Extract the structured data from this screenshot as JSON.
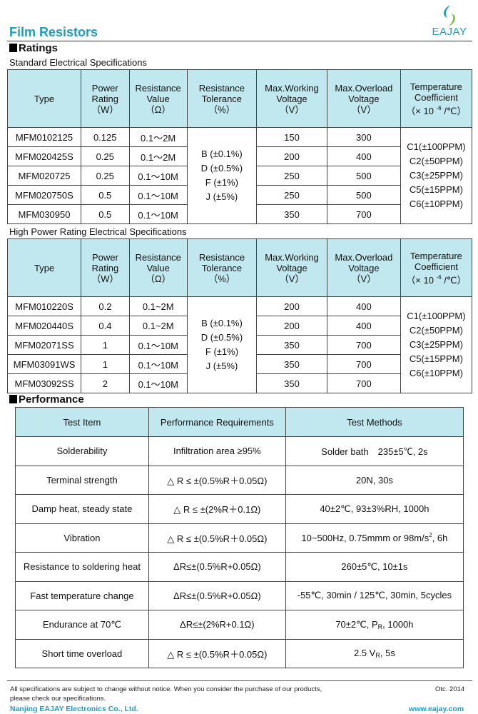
{
  "header": {
    "title": "Film Resistors",
    "logo_text": "EAJAY"
  },
  "colors": {
    "brand": "#1d9cc4",
    "table_header": "#c2e8ef",
    "logo_green": "#7cc043",
    "logo_blue": "#1d9cc4"
  },
  "ratings": {
    "heading": "Ratings",
    "columns": [
      [
        "Type"
      ],
      [
        "Power",
        "Rating",
        "（W）"
      ],
      [
        "Resistance",
        "Value",
        "（Ω）"
      ],
      [
        "Resistance",
        "Tolerance",
        "（%）"
      ],
      [
        "Max.Working",
        "Voltage",
        "（V）"
      ],
      [
        "Max.Overload",
        "Voltage",
        "（V）"
      ],
      [
        "Temperature",
        "Coefficient",
        {
          "text": "（× 10 ",
          "sup": "-6",
          "after": " /℃）"
        }
      ]
    ],
    "standard": {
      "caption": "Standard Electrical Specifications",
      "rows": [
        [
          "MFM0102125",
          "0.125",
          "0.1～2M",
          "150",
          "300"
        ],
        [
          "MFM020425S",
          "0.25",
          "0.1～2M",
          "200",
          "400"
        ],
        [
          "MFM020725",
          "0.25",
          "0.1～10M",
          "250",
          "500"
        ],
        [
          "MFM020750S",
          "0.5",
          "0.1～10M",
          "250",
          "500"
        ],
        [
          "MFM030950",
          "0.5",
          "0.1～10M",
          "350",
          "700"
        ]
      ],
      "tolerance": [
        "B (±0.1%)",
        "D (±0.5%)",
        "F (±1%)",
        "J (±5%)"
      ],
      "temp_coefficient": [
        "C1(±100PPM)",
        "C2(±50PPM)",
        "C3(±25PPM)",
        "C5(±15PPM)",
        "C6(±10PPM)"
      ]
    },
    "high_power": {
      "caption": "High Power Rating Electrical Specifications",
      "rows": [
        [
          "MFM010220S",
          "0.2",
          "0.1~2M",
          "200",
          "400"
        ],
        [
          "MFM020440S",
          "0.4",
          "0.1~2M",
          "200",
          "400"
        ],
        [
          "MFM02071SS",
          "1",
          "0.1～10M",
          "350",
          "700"
        ],
        [
          "MFM03091WS",
          "1",
          "0.1～10M",
          "350",
          "700"
        ],
        [
          "MFM03092SS",
          "2",
          "0.1～10M",
          "350",
          "700"
        ]
      ],
      "tolerance": [
        "B (±0.1%)",
        "D (±0.5%)",
        "F (±1%)",
        "J (±5%)"
      ],
      "temp_coefficient": [
        "C1(±100PPM)",
        "C2(±50PPM)",
        "C3(±25PPM)",
        "C5(±15PPM)",
        "C6(±10PPM)"
      ]
    }
  },
  "performance": {
    "heading": "Performance",
    "columns": [
      "Test Item",
      "Performance Requirements",
      "Test Methods"
    ],
    "rows": [
      [
        "Solderability",
        "Infiltration area ≥95%",
        "Solder bath　235±5℃, 2s"
      ],
      [
        "Terminal strength",
        "△ R ≤ ±(0.5%R＋0.05Ω)",
        "20N, 30s"
      ],
      [
        "Damp heat, steady state",
        "△ R ≤ ±(2%R＋0.1Ω)",
        "40±2℃, 93±3%RH, 1000h"
      ],
      [
        "Vibration",
        "△ R ≤ ±(0.5%R＋0.05Ω)",
        {
          "text": "10~500Hz, 0.75mmm or 98m/s",
          "sup": "2",
          "after": ", 6h"
        }
      ],
      [
        "Resistance to soldering heat",
        "ΔR≤±(0.5%R+0.05Ω)",
        "260±5℃, 10±1s"
      ],
      [
        "Fast temperature change",
        "ΔR≤±(0.5%R+0.05Ω)",
        "-55℃, 30min / 125℃, 30min, 5cycles"
      ],
      [
        "Endurance at 70℃",
        "ΔR≤±(2%R+0.1Ω)",
        {
          "text": "70±2℃, P",
          "sub": "R",
          "after": ", 1000h"
        }
      ],
      [
        "Short time overload",
        "△ R ≤ ±(0.5%R＋0.05Ω)",
        {
          "text": "2.5 V",
          "sub": "R",
          "after": ", 5s"
        }
      ]
    ]
  },
  "footer": {
    "notice_line1": "All specifications are subject to change without notice. When you consider the purchase of our products,",
    "notice_line2": "please check our specifications.",
    "date": "Otc. 2014",
    "company": "Nanjing EAJAY Electronics Co., Ltd.",
    "website": "www.eajay.com"
  }
}
